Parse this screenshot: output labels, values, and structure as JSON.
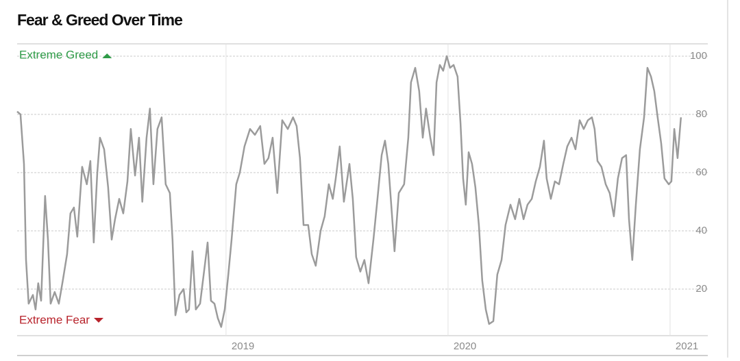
{
  "chart_data": {
    "type": "line",
    "title": "Fear & Greed Over Time",
    "annotations": [
      "Extreme Greed",
      "Extreme Fear"
    ],
    "color": "#9b9b9b",
    "annotation_colors": [
      "#2e9b47",
      "#b8242c"
    ],
    "grid": true,
    "xlim": [
      2018.059,
      2021.17
    ],
    "ylim": [
      4,
      104
    ],
    "xticks": [
      2019,
      2020,
      2021
    ],
    "yticks": [
      20,
      40,
      60,
      80,
      100
    ],
    "x": [
      2018.059,
      2018.074,
      2018.09,
      2018.099,
      2018.111,
      2018.13,
      2018.142,
      2018.154,
      2018.167,
      2018.185,
      2018.198,
      2018.21,
      2018.228,
      2018.247,
      2018.265,
      2018.284,
      2018.299,
      2018.315,
      2018.33,
      2018.352,
      2018.373,
      2018.389,
      2018.404,
      2018.42,
      2018.432,
      2018.451,
      2018.469,
      2018.485,
      2018.5,
      2018.519,
      2018.537,
      2018.556,
      2018.571,
      2018.59,
      2018.608,
      2018.623,
      2018.642,
      2018.657,
      2018.673,
      2018.691,
      2018.71,
      2018.728,
      2018.747,
      2018.759,
      2018.772,
      2018.79,
      2018.809,
      2018.821,
      2018.833,
      2018.849,
      2018.864,
      2018.883,
      2018.901,
      2018.917,
      2018.932,
      2018.948,
      2018.963,
      2018.978,
      2018.994,
      2019.009,
      2019.025,
      2019.046,
      2019.062,
      2019.083,
      2019.108,
      2019.13,
      2019.154,
      2019.173,
      2019.191,
      2019.21,
      2019.231,
      2019.253,
      2019.278,
      2019.302,
      2019.318,
      2019.333,
      2019.349,
      2019.37,
      2019.386,
      2019.404,
      2019.426,
      2019.444,
      2019.463,
      2019.481,
      2019.494,
      2019.512,
      2019.531,
      2019.556,
      2019.571,
      2019.586,
      2019.605,
      2019.623,
      2019.642,
      2019.664,
      2019.682,
      2019.701,
      2019.716,
      2019.731,
      2019.747,
      2019.759,
      2019.778,
      2019.802,
      2019.821,
      2019.833,
      2019.852,
      2019.87,
      2019.886,
      2019.901,
      2019.92,
      2019.935,
      2019.948,
      2019.963,
      2019.978,
      2019.994,
      2020.009,
      2020.025,
      2020.043,
      2020.056,
      2020.068,
      2020.08,
      2020.093,
      2020.108,
      2020.123,
      2020.139,
      2020.154,
      2020.17,
      2020.185,
      2020.204,
      2020.222,
      2020.241,
      2020.259,
      2020.281,
      2020.302,
      2020.321,
      2020.34,
      2020.358,
      2020.377,
      2020.395,
      2020.414,
      2020.432,
      2020.444,
      2020.463,
      2020.481,
      2020.5,
      2020.519,
      2020.537,
      2020.556,
      2020.574,
      2020.593,
      2020.611,
      2020.63,
      2020.648,
      2020.66,
      2020.673,
      2020.691,
      2020.71,
      2020.728,
      2020.747,
      2020.765,
      2020.784,
      2020.802,
      2020.815,
      2020.83,
      2020.846,
      2020.864,
      2020.883,
      2020.898,
      2020.914,
      2020.929,
      2020.944,
      2020.96,
      2020.975,
      2020.994,
      2021.006,
      2021.019,
      2021.034,
      2021.049
    ],
    "values": [
      81,
      80,
      63,
      30,
      15,
      18,
      13,
      22,
      16,
      52,
      37,
      15,
      19,
      15,
      23,
      32,
      46,
      48,
      38,
      62,
      56,
      64,
      36,
      60,
      72,
      68,
      55,
      37,
      44,
      51,
      46,
      57,
      75,
      59,
      72,
      50,
      72,
      82,
      56,
      75,
      79,
      56,
      53,
      37,
      11,
      18,
      20,
      12,
      13,
      33,
      13,
      15,
      26,
      36,
      16,
      15,
      10,
      7,
      13,
      24,
      37,
      56,
      60,
      69,
      75,
      73,
      76,
      63,
      65,
      72,
      53,
      78,
      75,
      79,
      76,
      65,
      42,
      42,
      32,
      28,
      40,
      45,
      56,
      51,
      58,
      69,
      50,
      63,
      51,
      31,
      26,
      30,
      22,
      37,
      51,
      66,
      71,
      63,
      46,
      33,
      53,
      56,
      72,
      91,
      96,
      88,
      72,
      82,
      72,
      66,
      91,
      97,
      95,
      100,
      96,
      97,
      93,
      77,
      58,
      49,
      67,
      63,
      55,
      42,
      23,
      13,
      8,
      9,
      25,
      30,
      42,
      49,
      44,
      51,
      44,
      49,
      51,
      57,
      62,
      71,
      58,
      51,
      57,
      56,
      63,
      69,
      72,
      68,
      78,
      75,
      78,
      79,
      75,
      64,
      62,
      56,
      53,
      45,
      58,
      65,
      66,
      44,
      30,
      49,
      68,
      79,
      96,
      93,
      88,
      79,
      70,
      58,
      56,
      57,
      75,
      65,
      79
    ]
  }
}
